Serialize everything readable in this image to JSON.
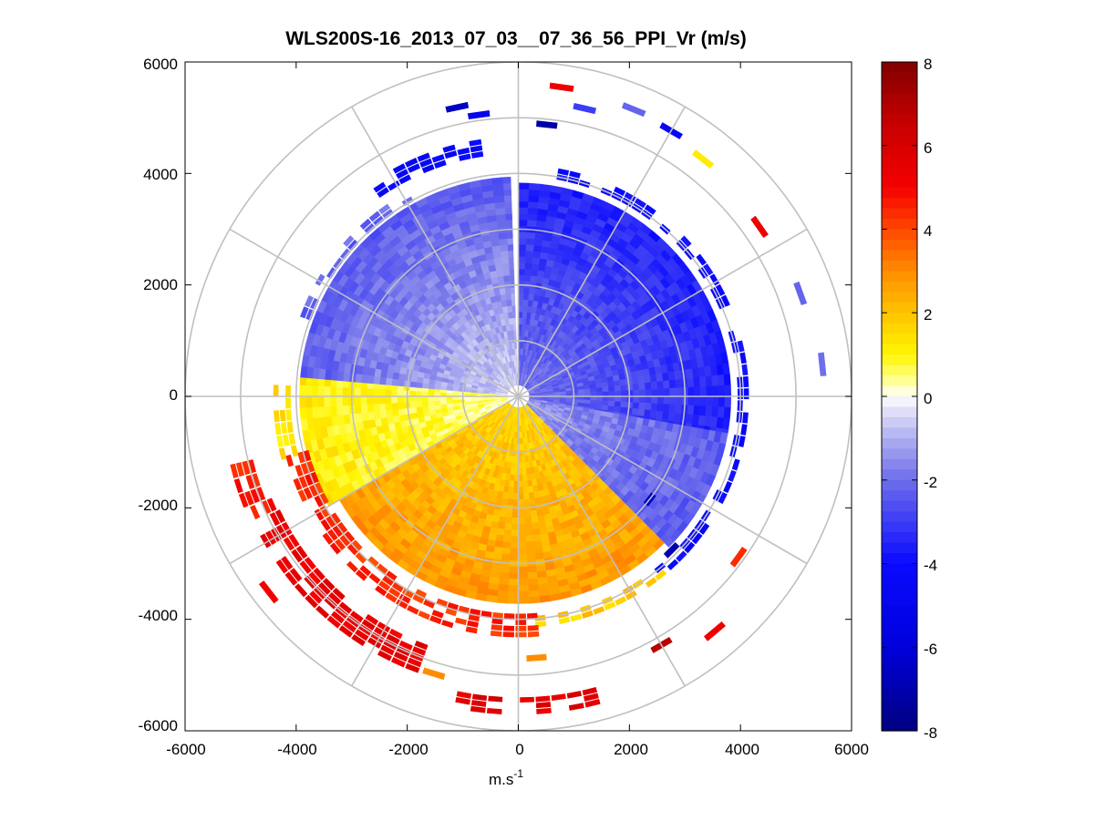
{
  "chart_data": {
    "type": "heatmap",
    "subtype": "polar-ppi-scan",
    "title": "WLS200S-16_2013_07_03__07_36_56_PPI_Vr (m/s)",
    "xlabel": "m.s",
    "xlabel_sup": "-1",
    "ylabel": "",
    "xlim": [
      -6000,
      6000
    ],
    "ylim": [
      -6000,
      6000
    ],
    "x_ticks": [
      "-6000",
      "-4000",
      "-2000",
      "0",
      "2000",
      "4000",
      "6000"
    ],
    "y_ticks": [
      "6000",
      "4000",
      "2000",
      "0",
      "-2000",
      "-4000",
      "-6000"
    ],
    "grid_rings_m": [
      1000,
      2000,
      3000,
      4000,
      5000,
      6000
    ],
    "grid_spoke_step_deg": 30,
    "max_range_m": 6000,
    "colorbar": {
      "range": [
        -8,
        8
      ],
      "ticks": [
        "8",
        "6",
        "4",
        "2",
        "0",
        "-2",
        "-4",
        "-6",
        "-8"
      ],
      "colors": {
        "neg_max": "#000080",
        "neg_mid": "#0000ff",
        "zero": "#ffffff",
        "pos_low": "#ffff00",
        "pos_mid": "#ff8000",
        "pos_high": "#ff0000",
        "pos_max": "#800000"
      }
    },
    "field_description": "Radial velocity: negative (blue, ~-2 to -4 m/s) over northern half and east, positive (yellow/orange/red, 0.5 to 5 m/s) over southern half and west; sparse returns beyond 4000 m",
    "sectors": [
      {
        "az_from": 0,
        "az_to": 100,
        "r_from": 200,
        "r_to": 3800,
        "v_near": -2.0,
        "v_far": -3.6
      },
      {
        "az_from": 100,
        "az_to": 135,
        "r_from": 200,
        "r_to": 3800,
        "v_near": -1.4,
        "v_far": -2.4
      },
      {
        "az_from": 135,
        "az_to": 240,
        "r_from": 200,
        "r_to": 3700,
        "v_near": 1.6,
        "v_far": 2.8
      },
      {
        "az_from": 240,
        "az_to": 275,
        "r_from": 200,
        "r_to": 3900,
        "v_near": 0.4,
        "v_far": 1.2
      },
      {
        "az_from": 275,
        "az_to": 358,
        "r_from": 200,
        "r_to": 3900,
        "v_near": -0.6,
        "v_far": -2.4
      }
    ],
    "outer_arcs": [
      {
        "az_from": 10,
        "az_to": 140,
        "r_from": 3950,
        "r_to": 4150,
        "v": -4.4
      },
      {
        "az_from": 140,
        "az_to": 175,
        "r_from": 3950,
        "r_to": 4100,
        "v": 1.6
      },
      {
        "az_from": 175,
        "az_to": 255,
        "r_from": 3900,
        "r_to": 4250,
        "v": 4.2
      },
      {
        "az_from": 255,
        "az_to": 272,
        "r_from": 4100,
        "r_to": 4350,
        "v": 1.2
      },
      {
        "az_from": 290,
        "az_to": 330,
        "r_from": 3980,
        "r_to": 4150,
        "v": -2.4
      },
      {
        "az_from": 325,
        "az_to": 350,
        "r_from": 4350,
        "r_to": 4600,
        "v": -4.6
      },
      {
        "az_from": 200,
        "az_to": 245,
        "r_from": 4750,
        "r_to": 5300,
        "v": 5.2
      },
      {
        "az_from": 165,
        "az_to": 190,
        "r_from": 5400,
        "r_to": 5700,
        "v": 5.4
      },
      {
        "az_from": 245,
        "az_to": 256,
        "r_from": 4800,
        "r_to": 5300,
        "v": 4.4
      }
    ],
    "blobs": [
      {
        "az": 8,
        "r": 5600,
        "v": 5.2
      },
      {
        "az": 13,
        "r": 5300,
        "v": -3.0
      },
      {
        "az": 22,
        "r": 5550,
        "v": -2.2
      },
      {
        "az": 30,
        "r": 5500,
        "v": -4.6
      },
      {
        "az": 38,
        "r": 5400,
        "v": 1.2
      },
      {
        "az": 6,
        "r": 4900,
        "v": -7.2
      },
      {
        "az": 348,
        "r": 5300,
        "v": -6.6
      },
      {
        "az": 352,
        "r": 5100,
        "v": -5.0
      },
      {
        "az": 55,
        "r": 5300,
        "v": 5.2
      },
      {
        "az": 70,
        "r": 5400,
        "v": -2.2
      },
      {
        "az": 84,
        "r": 5500,
        "v": -2.0
      },
      {
        "az": 126,
        "r": 4900,
        "v": 4.4
      },
      {
        "az": 150,
        "r": 5150,
        "v": 6.8
      },
      {
        "az": 140,
        "r": 5500,
        "v": 5.2
      },
      {
        "az": 128,
        "r": 3000,
        "v": -6.6
      },
      {
        "az": 135,
        "r": 3900,
        "v": -7.0
      },
      {
        "az": 232,
        "r": 5700,
        "v": 5.0
      },
      {
        "az": 176,
        "r": 4700,
        "v": 3.0
      },
      {
        "az": 197,
        "r": 5200,
        "v": 3.0
      }
    ]
  }
}
